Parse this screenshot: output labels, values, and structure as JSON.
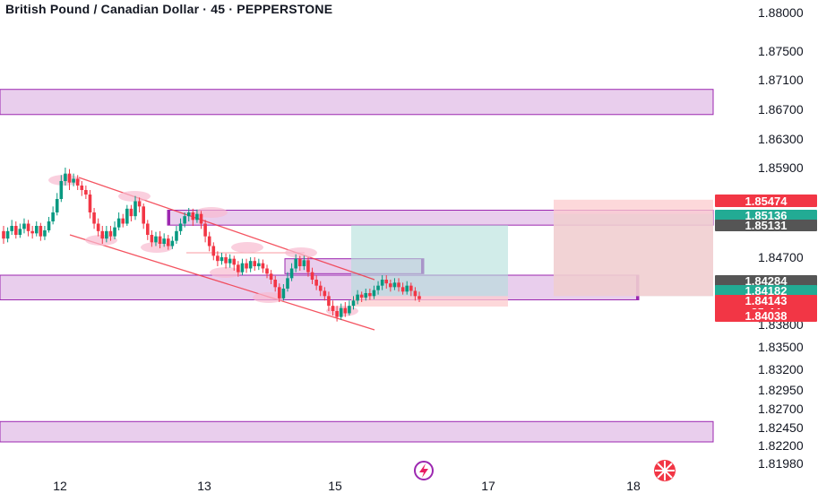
{
  "header": {
    "title": "British Pound / Canadian Dollar · 45 · PEPPERSTONE"
  },
  "chart_data": {
    "type": "candlestick",
    "symbol": "GBPCAD",
    "interval": "45",
    "exchange": "PEPPERSTONE",
    "y_ticks": [
      "1.88000",
      "1.87500",
      "1.87100",
      "1.86700",
      "1.86300",
      "1.85900",
      "1.84700",
      "1.83800",
      "1.83500",
      "1.83200",
      "1.82950",
      "1.82700",
      "1.82450",
      "1.82200",
      "1.81980"
    ],
    "x_ticks": [
      "12",
      "13",
      "15",
      "17",
      "18"
    ],
    "price_tags": [
      {
        "label": "1.85474",
        "color": "#f23645"
      },
      {
        "label": "1.85136",
        "color": "#22ab94"
      },
      {
        "label": "1.85131",
        "color": "#555555"
      },
      {
        "label": "1.84284",
        "color": "#555555"
      },
      {
        "label": "1.84182",
        "color": "#22ab94"
      },
      {
        "label": "1.84143",
        "countdown": "25:44",
        "color": "#f23645"
      },
      {
        "label": "1.84038",
        "color": "#f23645"
      }
    ],
    "zones": [
      {
        "name": "supply-zone-top",
        "price_low": 1.8663,
        "price_high": 1.8697,
        "color": "#e1bee7"
      },
      {
        "name": "resistance-zone",
        "price_low": 1.8513,
        "price_high": 1.8533,
        "color": "#e1bee7"
      },
      {
        "name": "small-zone",
        "price_low": 1.8448,
        "price_high": 1.8468,
        "color": "#e1bee7"
      },
      {
        "name": "support-zone-mid",
        "price_low": 1.8413,
        "price_high": 1.8446,
        "color": "#e1bee7"
      },
      {
        "name": "demand-zone-bottom",
        "price_low": 1.8225,
        "price_high": 1.8253,
        "color": "#e1bee7"
      }
    ],
    "positions": [
      {
        "entry": 1.8418,
        "target": 1.8513,
        "stop": 1.8404,
        "color_profit": "#b2dfdb",
        "color_loss": "#fccbcd"
      },
      {
        "entry": 1.8418,
        "target": 1.8528,
        "stop": 1.8547,
        "color_profit": "#b2dfdb",
        "color_loss": "#fccbcd"
      }
    ],
    "channel": {
      "upper": [
        [
          1.8585,
          1.8422
        ]
      ],
      "lower": [
        [
          1.849,
          1.8385
        ]
      ]
    },
    "candles": [
      [
        1.8505,
        1.8495,
        1.8512,
        1.8488
      ],
      [
        1.8495,
        1.8505,
        1.851,
        1.849
      ],
      [
        1.8505,
        1.8512,
        1.852,
        1.85
      ],
      [
        1.8512,
        1.85,
        1.8518,
        1.8495
      ],
      [
        1.85,
        1.8508,
        1.8515,
        1.8496
      ],
      [
        1.8508,
        1.8515,
        1.8522,
        1.8502
      ],
      [
        1.8515,
        1.8505,
        1.852,
        1.8498
      ],
      [
        1.8505,
        1.8502,
        1.8512,
        1.8495
      ],
      [
        1.8502,
        1.8512,
        1.8518,
        1.8498
      ],
      [
        1.8512,
        1.8498,
        1.8516,
        1.8492
      ],
      [
        1.8498,
        1.8506,
        1.8512,
        1.8493
      ],
      [
        1.8506,
        1.8518,
        1.8524,
        1.8503
      ],
      [
        1.8518,
        1.853,
        1.8538,
        1.8514
      ],
      [
        1.853,
        1.8548,
        1.8556,
        1.8526
      ],
      [
        1.8548,
        1.8572,
        1.858,
        1.8544
      ],
      [
        1.8572,
        1.8582,
        1.859,
        1.8566
      ],
      [
        1.8582,
        1.857,
        1.8588,
        1.856
      ],
      [
        1.857,
        1.8575,
        1.8582,
        1.8565
      ],
      [
        1.8575,
        1.8566,
        1.858,
        1.856
      ],
      [
        1.8566,
        1.856,
        1.8572,
        1.8552
      ],
      [
        1.856,
        1.8554,
        1.8566,
        1.8548
      ],
      [
        1.8554,
        1.853,
        1.856,
        1.8522
      ],
      [
        1.853,
        1.8515,
        1.8536,
        1.8508
      ],
      [
        1.8515,
        1.8505,
        1.8522,
        1.8498
      ],
      [
        1.8505,
        1.8495,
        1.8512,
        1.8488
      ],
      [
        1.8495,
        1.8505,
        1.8512,
        1.849
      ],
      [
        1.8505,
        1.8498,
        1.8512,
        1.8492
      ],
      [
        1.8498,
        1.851,
        1.8518,
        1.8494
      ],
      [
        1.851,
        1.8522,
        1.853,
        1.8506
      ],
      [
        1.8522,
        1.8515,
        1.8528,
        1.851
      ],
      [
        1.8515,
        1.8535,
        1.854,
        1.8512
      ],
      [
        1.8535,
        1.8525,
        1.854,
        1.8518
      ],
      [
        1.8525,
        1.8545,
        1.8552,
        1.852
      ],
      [
        1.8545,
        1.8538,
        1.855,
        1.853
      ],
      [
        1.8538,
        1.8515,
        1.8542,
        1.8508
      ],
      [
        1.8515,
        1.85,
        1.852,
        1.8493
      ],
      [
        1.85,
        1.849,
        1.8506,
        1.8484
      ],
      [
        1.849,
        1.8498,
        1.8504,
        1.8485
      ],
      [
        1.8498,
        1.8488,
        1.8505,
        1.8482
      ],
      [
        1.8488,
        1.8495,
        1.8502,
        1.8484
      ],
      [
        1.8495,
        1.8485,
        1.85,
        1.848
      ],
      [
        1.8485,
        1.8492,
        1.8498,
        1.8481
      ],
      [
        1.8492,
        1.8505,
        1.8512,
        1.8488
      ],
      [
        1.8505,
        1.8515,
        1.8522,
        1.85
      ],
      [
        1.8515,
        1.8525,
        1.853,
        1.851
      ],
      [
        1.8525,
        1.853,
        1.8536,
        1.8518
      ],
      [
        1.853,
        1.852,
        1.8535,
        1.8512
      ],
      [
        1.852,
        1.8528,
        1.8534,
        1.8516
      ],
      [
        1.8528,
        1.8515,
        1.8532,
        1.8508
      ],
      [
        1.8515,
        1.8498,
        1.852,
        1.849
      ],
      [
        1.8498,
        1.8485,
        1.8504,
        1.8478
      ],
      [
        1.8485,
        1.8472,
        1.849,
        1.8466
      ],
      [
        1.8472,
        1.8465,
        1.8478,
        1.8458
      ],
      [
        1.8465,
        1.847,
        1.8476,
        1.846
      ],
      [
        1.847,
        1.8462,
        1.8475,
        1.8455
      ],
      [
        1.8462,
        1.8468,
        1.8474,
        1.8456
      ],
      [
        1.8468,
        1.846,
        1.8472,
        1.8452
      ],
      [
        1.846,
        1.845,
        1.8465,
        1.8444
      ],
      [
        1.845,
        1.8462,
        1.8468,
        1.8446
      ],
      [
        1.8462,
        1.8455,
        1.8468,
        1.8449
      ],
      [
        1.8455,
        1.8465,
        1.847,
        1.845
      ],
      [
        1.8465,
        1.8458,
        1.847,
        1.8452
      ],
      [
        1.8458,
        1.8462,
        1.8468,
        1.8453
      ],
      [
        1.8462,
        1.8455,
        1.8467,
        1.8449
      ],
      [
        1.8455,
        1.8448,
        1.846,
        1.8442
      ],
      [
        1.8448,
        1.844,
        1.8453,
        1.8434
      ],
      [
        1.844,
        1.843,
        1.8445,
        1.8424
      ],
      [
        1.843,
        1.8415,
        1.8435,
        1.841
      ],
      [
        1.8415,
        1.8428,
        1.8434,
        1.8412
      ],
      [
        1.8428,
        1.8442,
        1.845,
        1.8424
      ],
      [
        1.8442,
        1.8455,
        1.8462,
        1.8438
      ],
      [
        1.8455,
        1.8468,
        1.8474,
        1.845
      ],
      [
        1.8468,
        1.8458,
        1.8472,
        1.8452
      ],
      [
        1.8458,
        1.8466,
        1.8472,
        1.8453
      ],
      [
        1.8466,
        1.845,
        1.847,
        1.8444
      ],
      [
        1.845,
        1.844,
        1.8456,
        1.8434
      ],
      [
        1.844,
        1.8432,
        1.8446,
        1.8426
      ],
      [
        1.8432,
        1.8425,
        1.8438,
        1.8418
      ],
      [
        1.8425,
        1.8418,
        1.843,
        1.8412
      ],
      [
        1.8418,
        1.8405,
        1.8424,
        1.8398
      ],
      [
        1.8405,
        1.8398,
        1.8412,
        1.8392
      ],
      [
        1.8398,
        1.839,
        1.8405,
        1.8384
      ],
      [
        1.839,
        1.8402,
        1.8408,
        1.8386
      ],
      [
        1.8402,
        1.8395,
        1.841,
        1.839
      ],
      [
        1.8395,
        1.8405,
        1.8412,
        1.8392
      ],
      [
        1.8405,
        1.8412,
        1.8418,
        1.84
      ],
      [
        1.8412,
        1.842,
        1.8426,
        1.8407
      ],
      [
        1.842,
        1.8416,
        1.8424,
        1.841
      ],
      [
        1.8416,
        1.8422,
        1.8428,
        1.8412
      ],
      [
        1.8422,
        1.8418,
        1.8428,
        1.8413
      ],
      [
        1.8418,
        1.8426,
        1.8432,
        1.8414
      ],
      [
        1.8426,
        1.8432,
        1.8438,
        1.842
      ],
      [
        1.8432,
        1.844,
        1.8446,
        1.8426
      ],
      [
        1.844,
        1.8435,
        1.8446,
        1.8428
      ],
      [
        1.8435,
        1.843,
        1.844,
        1.8424
      ],
      [
        1.843,
        1.8436,
        1.8442,
        1.8426
      ],
      [
        1.8436,
        1.843,
        1.8442,
        1.8424
      ],
      [
        1.843,
        1.8424,
        1.8436,
        1.842
      ],
      [
        1.8424,
        1.8432,
        1.8438,
        1.842
      ],
      [
        1.8432,
        1.8425,
        1.8436,
        1.8418
      ],
      [
        1.8425,
        1.8418,
        1.843,
        1.8412
      ],
      [
        1.8418,
        1.8414,
        1.8424,
        1.841
      ]
    ]
  }
}
